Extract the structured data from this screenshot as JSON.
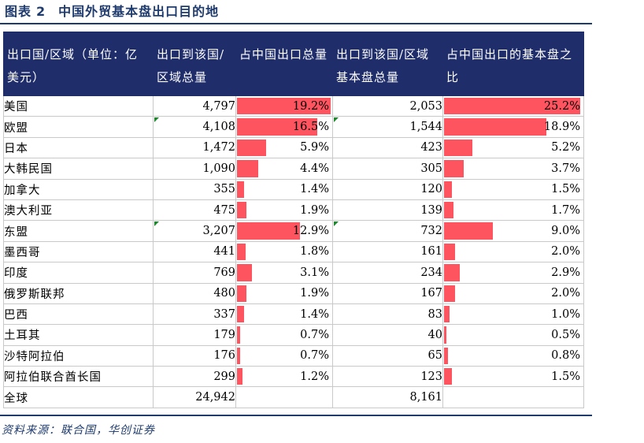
{
  "figure": {
    "label": "图表",
    "number": "2",
    "title": "中国外贸基本盘出口目的地"
  },
  "headers": {
    "region": "出口国/区域（单位：亿美元）",
    "total_export": "出口到该国/区域总量",
    "total_share": "占中国出口总量",
    "base_export": "出口到该国/区域基本盘总量",
    "base_share": "占中国出口的基本盘之比"
  },
  "rows": [
    {
      "name": "美国",
      "total": "4,797",
      "total_share": "19.2%",
      "total_share_value": 19.2,
      "base": "2,053",
      "base_share": "25.2%",
      "base_share_value": 25.2,
      "flag_total": false,
      "flag_base": false
    },
    {
      "name": "欧盟",
      "total": "4,108",
      "total_share": "16.5%",
      "total_share_value": 16.5,
      "base": "1,544",
      "base_share": "18.9%",
      "base_share_value": 18.9,
      "flag_total": true,
      "flag_base": true
    },
    {
      "name": "日本",
      "total": "1,472",
      "total_share": "5.9%",
      "total_share_value": 5.9,
      "base": "423",
      "base_share": "5.2%",
      "base_share_value": 5.2,
      "flag_total": false,
      "flag_base": false
    },
    {
      "name": "大韩民国",
      "total": "1,090",
      "total_share": "4.4%",
      "total_share_value": 4.4,
      "base": "305",
      "base_share": "3.7%",
      "base_share_value": 3.7,
      "flag_total": false,
      "flag_base": false
    },
    {
      "name": "加拿大",
      "total": "355",
      "total_share": "1.4%",
      "total_share_value": 1.4,
      "base": "120",
      "base_share": "1.5%",
      "base_share_value": 1.5,
      "flag_total": false,
      "flag_base": false
    },
    {
      "name": "澳大利亚",
      "total": "475",
      "total_share": "1.9%",
      "total_share_value": 1.9,
      "base": "139",
      "base_share": "1.7%",
      "base_share_value": 1.7,
      "flag_total": false,
      "flag_base": false
    },
    {
      "name": "东盟",
      "total": "3,207",
      "total_share": "12.9%",
      "total_share_value": 12.9,
      "base": "732",
      "base_share": "9.0%",
      "base_share_value": 9.0,
      "flag_total": true,
      "flag_base": true
    },
    {
      "name": "墨西哥",
      "total": "441",
      "total_share": "1.8%",
      "total_share_value": 1.8,
      "base": "161",
      "base_share": "2.0%",
      "base_share_value": 2.0,
      "flag_total": false,
      "flag_base": false
    },
    {
      "name": "印度",
      "total": "769",
      "total_share": "3.1%",
      "total_share_value": 3.1,
      "base": "234",
      "base_share": "2.9%",
      "base_share_value": 2.9,
      "flag_total": false,
      "flag_base": false
    },
    {
      "name": "俄罗斯联邦",
      "total": "480",
      "total_share": "1.9%",
      "total_share_value": 1.9,
      "base": "167",
      "base_share": "2.0%",
      "base_share_value": 2.0,
      "flag_total": false,
      "flag_base": false
    },
    {
      "name": "巴西",
      "total": "337",
      "total_share": "1.4%",
      "total_share_value": 1.4,
      "base": "83",
      "base_share": "1.0%",
      "base_share_value": 1.0,
      "flag_total": false,
      "flag_base": false
    },
    {
      "name": "土耳其",
      "total": "179",
      "total_share": "0.7%",
      "total_share_value": 0.7,
      "base": "40",
      "base_share": "0.5%",
      "base_share_value": 0.5,
      "flag_total": false,
      "flag_base": false
    },
    {
      "name": "沙特阿拉伯",
      "total": "176",
      "total_share": "0.7%",
      "total_share_value": 0.7,
      "base": "65",
      "base_share": "0.8%",
      "base_share_value": 0.8,
      "flag_total": false,
      "flag_base": false
    },
    {
      "name": "阿拉伯联合酋长国",
      "total": "299",
      "total_share": "1.2%",
      "total_share_value": 1.2,
      "base": "123",
      "base_share": "1.5%",
      "base_share_value": 1.5,
      "flag_total": false,
      "flag_base": false
    }
  ],
  "total_row": {
    "name": "全球",
    "total": "24,942",
    "base": "8,161"
  },
  "bar_color": "#fd5460",
  "header_color": "#1f2d6b",
  "source": "资料来源：联合国，华创证券"
}
